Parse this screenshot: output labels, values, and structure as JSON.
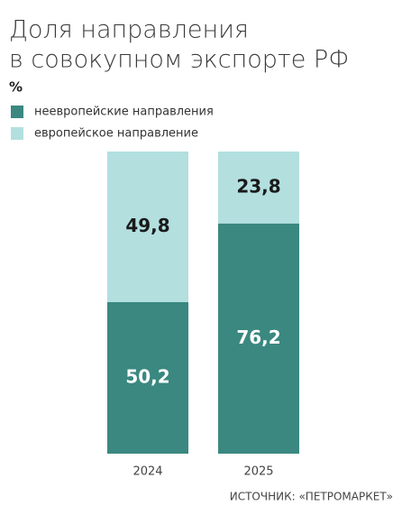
{
  "chart_data": {
    "type": "stacked_bar",
    "title": [
      "Доля направления",
      "в совокупном экспорте РФ"
    ],
    "unit_label": "%",
    "categories": [
      "2024",
      "2025"
    ],
    "series": [
      {
        "name": "неевропейские направления",
        "color": "#3a8880",
        "label_color": "#ffffff",
        "values": [
          50.2,
          76.2
        ],
        "value_labels": [
          "50,2",
          "76,2"
        ]
      },
      {
        "name": "европейское направление",
        "color": "#b3dfdf",
        "label_color": "#1a1a1a",
        "values": [
          49.8,
          23.8
        ],
        "value_labels": [
          "49,8",
          "23,8"
        ]
      }
    ],
    "ylim": [
      0,
      100
    ],
    "source": "ИСТОЧНИК: «ПЕТРОМАРКЕТ»"
  }
}
